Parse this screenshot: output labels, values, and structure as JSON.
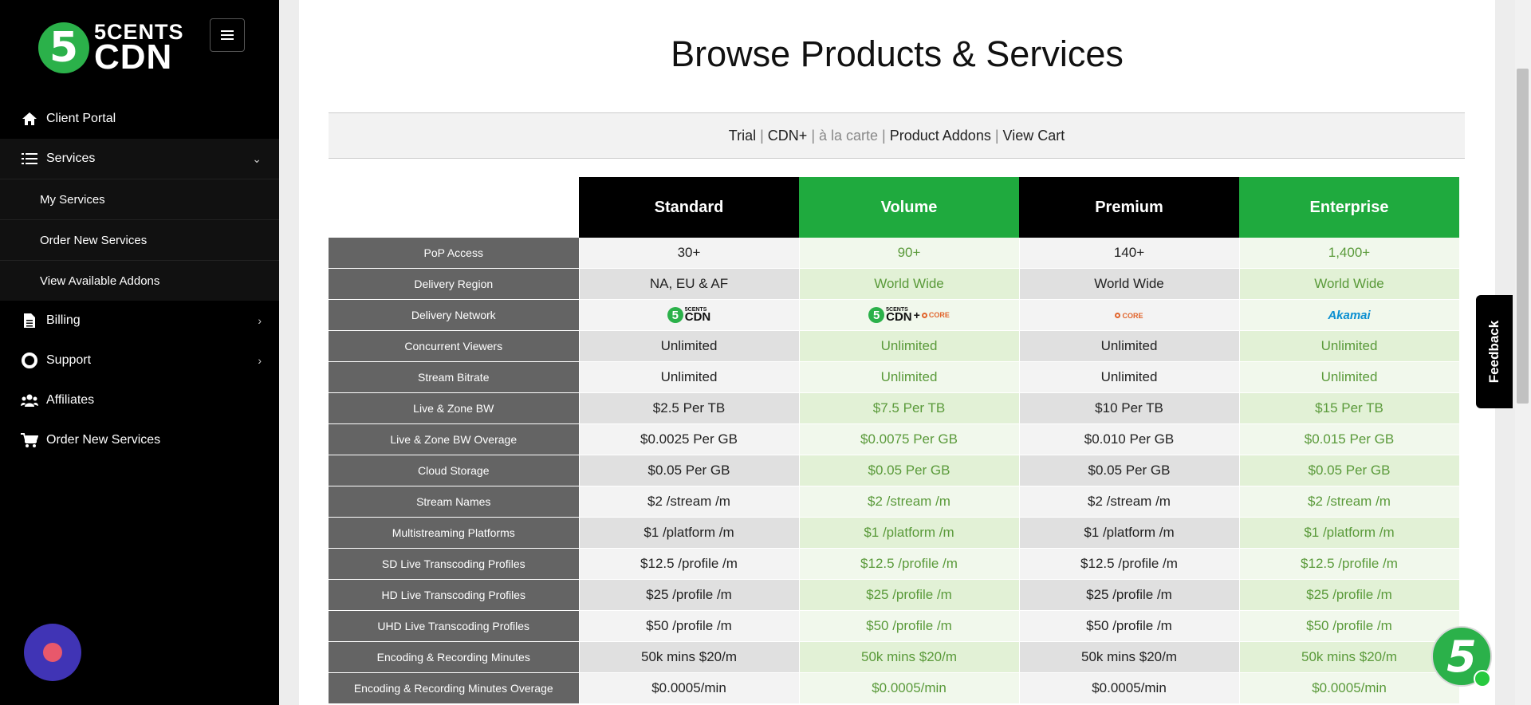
{
  "brand": {
    "line1": "5CENTS",
    "line2": "CDN",
    "digit": "5"
  },
  "sidebar": {
    "items": [
      {
        "label": "Client Portal",
        "icon": "home-icon"
      },
      {
        "label": "Services",
        "icon": "list-icon"
      },
      {
        "label": "Billing",
        "icon": "file-icon"
      },
      {
        "label": "Support",
        "icon": "lifebuoy-icon"
      },
      {
        "label": "Affiliates",
        "icon": "users-icon"
      },
      {
        "label": "Order New Services",
        "icon": "cart-icon"
      }
    ],
    "services_sub": [
      "My Services",
      "Order New Services",
      "View Available Addons"
    ]
  },
  "page": {
    "title": "Browse Products & Services"
  },
  "subnav": {
    "trial": "Trial",
    "cdn_plus": "CDN+",
    "a_la_carte": "à la carte",
    "product_addons": "Product Addons",
    "view_cart": "View Cart",
    "sep": "|"
  },
  "plans": [
    "Standard",
    "Volume",
    "Premium",
    "Enterprise"
  ],
  "rows": [
    {
      "label": "PoP Access",
      "values": [
        "30+",
        "90+",
        "140+",
        "1,400+"
      ]
    },
    {
      "label": "Delivery Region",
      "values": [
        "NA, EU & AF",
        "World Wide",
        "World Wide",
        "World Wide"
      ]
    },
    {
      "label": "Delivery Network",
      "values": [
        "",
        "",
        "",
        ""
      ]
    },
    {
      "label": "Concurrent Viewers",
      "values": [
        "Unlimited",
        "Unlimited",
        "Unlimited",
        "Unlimited"
      ]
    },
    {
      "label": "Stream Bitrate",
      "values": [
        "Unlimited",
        "Unlimited",
        "Unlimited",
        "Unlimited"
      ]
    },
    {
      "label": "Live & Zone BW",
      "values": [
        "$2.5 Per TB",
        "$7.5 Per TB",
        "$10 Per TB",
        "$15 Per TB"
      ]
    },
    {
      "label": "Live & Zone BW Overage",
      "values": [
        "$0.0025 Per GB",
        "$0.0075 Per GB",
        "$0.010 Per GB",
        "$0.015 Per GB"
      ]
    },
    {
      "label": "Cloud Storage",
      "values": [
        "$0.05 Per GB",
        "$0.05 Per GB",
        "$0.05 Per GB",
        "$0.05 Per GB"
      ]
    },
    {
      "label": "Stream Names",
      "values": [
        "$2 /stream /m",
        "$2 /stream /m",
        "$2 /stream /m",
        "$2 /stream /m"
      ]
    },
    {
      "label": "Multistreaming Platforms",
      "values": [
        "$1 /platform /m",
        "$1 /platform /m",
        "$1 /platform /m",
        "$1 /platform /m"
      ]
    },
    {
      "label": "SD Live Transcoding Profiles",
      "values": [
        "$12.5 /profile /m",
        "$12.5 /profile /m",
        "$12.5 /profile /m",
        "$12.5 /profile /m"
      ]
    },
    {
      "label": "HD Live Transcoding Profiles",
      "values": [
        "$25 /profile /m",
        "$25 /profile /m",
        "$25 /profile /m",
        "$25 /profile /m"
      ]
    },
    {
      "label": "UHD Live Transcoding Profiles",
      "values": [
        "$50 /profile /m",
        "$50 /profile /m",
        "$50 /profile /m",
        "$50 /profile /m"
      ]
    },
    {
      "label": "Encoding & Recording Minutes",
      "values": [
        "50k mins $20/m",
        "50k mins $20/m",
        "50k mins $20/m",
        "50k mins $20/m"
      ]
    },
    {
      "label": "Encoding & Recording Minutes Overage",
      "values": [
        "$0.0005/min",
        "$0.0005/min",
        "$0.0005/min",
        "$0.0005/min"
      ]
    }
  ],
  "network_logos": {
    "cdn_a": "5CENTS",
    "cdn_b": "CDN",
    "core": "CORE",
    "akamai": "Akamai",
    "plus": "+"
  },
  "feedback": {
    "label": "Feedback"
  },
  "colors": {
    "green": "#1faa3e",
    "sidebar_bg": "#000000",
    "label_bg": "#646464"
  }
}
